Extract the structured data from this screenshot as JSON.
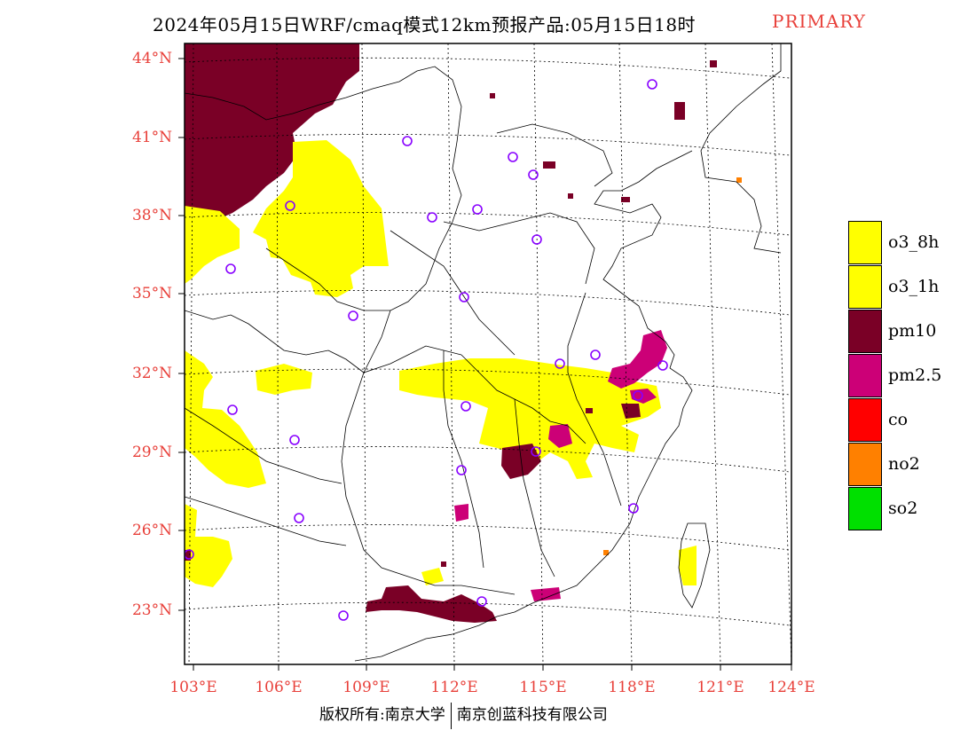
{
  "title": "2024年05月15日WRF/cmaq模式12km预报产品:05月15日18时",
  "subtitle_tag": "PRIMARY",
  "lat_labels": [
    "44°N",
    "41°N",
    "38°N",
    "35°N",
    "32°N",
    "29°N",
    "26°N",
    "23°N"
  ],
  "lon_labels": [
    "103°E",
    "106°E",
    "109°E",
    "112°E",
    "115°E",
    "118°E",
    "121°E",
    "124°E"
  ],
  "legend": [
    {
      "label": "o3_8h",
      "color": "#ffff00"
    },
    {
      "label": "o3_1h",
      "color": "#ffff00"
    },
    {
      "label": "pm10",
      "color": "#7a0026"
    },
    {
      "label": "pm2.5",
      "color": "#cc0077"
    },
    {
      "label": "co",
      "color": "#ff0000"
    },
    {
      "label": "no2",
      "color": "#ff8000"
    },
    {
      "label": "so2",
      "color": "#00e000"
    }
  ],
  "footer": {
    "left": "版权所有:南京大学",
    "right": "南京创蓝科技有限公司"
  }
}
